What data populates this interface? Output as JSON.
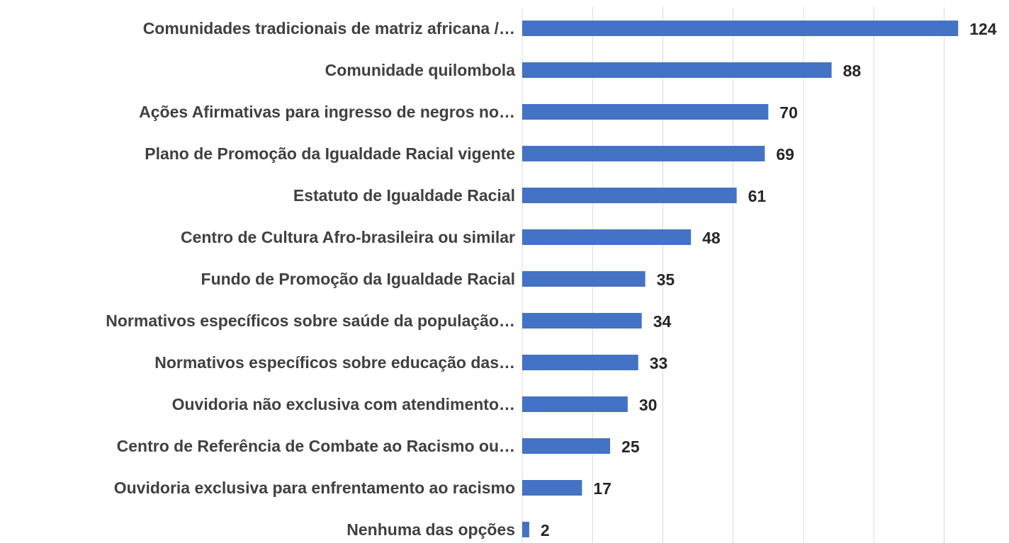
{
  "chart_data": {
    "type": "barh",
    "categories": [
      "Comunidades tradicionais de matriz africana /…",
      "Comunidade quilombola",
      "Ações Afirmativas para ingresso de negros no…",
      "Plano de Promoção da Igualdade Racial vigente",
      "Estatuto de Igualdade Racial",
      "Centro de Cultura Afro-brasileira ou similar",
      "Fundo de Promoção da Igualdade Racial",
      "Normativos específicos sobre saúde da população…",
      "Normativos específicos sobre educação das…",
      "Ouvidoria não exclusiva com atendimento…",
      "Centro de Referência de Combate ao Racismo ou…",
      "Ouvidoria exclusiva para enfrentamento ao racismo",
      "Nenhuma das opções"
    ],
    "values": [
      124,
      88,
      70,
      69,
      61,
      48,
      35,
      34,
      33,
      30,
      25,
      17,
      2
    ],
    "color": "#4472c4",
    "xlim": [
      0,
      130
    ],
    "xticks": [
      0,
      20,
      40,
      60,
      80,
      100,
      120
    ],
    "grid": true
  }
}
